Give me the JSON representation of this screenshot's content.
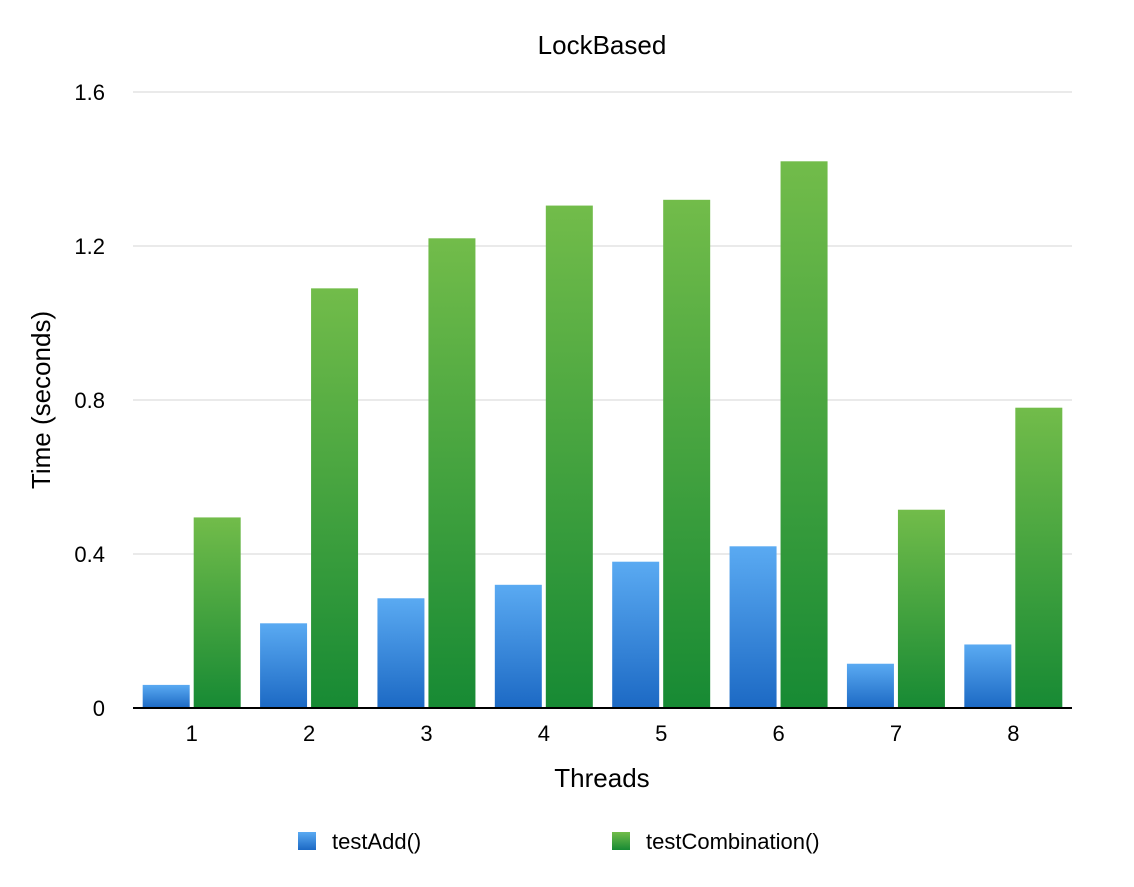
{
  "chart_data": {
    "type": "bar",
    "title": "LockBased",
    "xlabel": "Threads",
    "ylabel": "Time (seconds)",
    "categories": [
      "1",
      "2",
      "3",
      "4",
      "5",
      "6",
      "7",
      "8"
    ],
    "ylim": [
      0,
      1.6
    ],
    "yticks": [
      "0",
      "0.4",
      "0.8",
      "1.2",
      "1.6"
    ],
    "grid": true,
    "legend_position": "bottom",
    "series": [
      {
        "name": "testAdd()",
        "values": [
          0.06,
          0.22,
          0.285,
          0.32,
          0.38,
          0.42,
          0.115,
          0.165
        ],
        "color_top": "#5aaaf2",
        "color_bottom": "#1c69c4"
      },
      {
        "name": "testCombination()",
        "values": [
          0.495,
          1.09,
          1.22,
          1.305,
          1.32,
          1.42,
          0.515,
          0.78
        ],
        "color_top": "#72bc4a",
        "color_bottom": "#178a34"
      }
    ]
  }
}
